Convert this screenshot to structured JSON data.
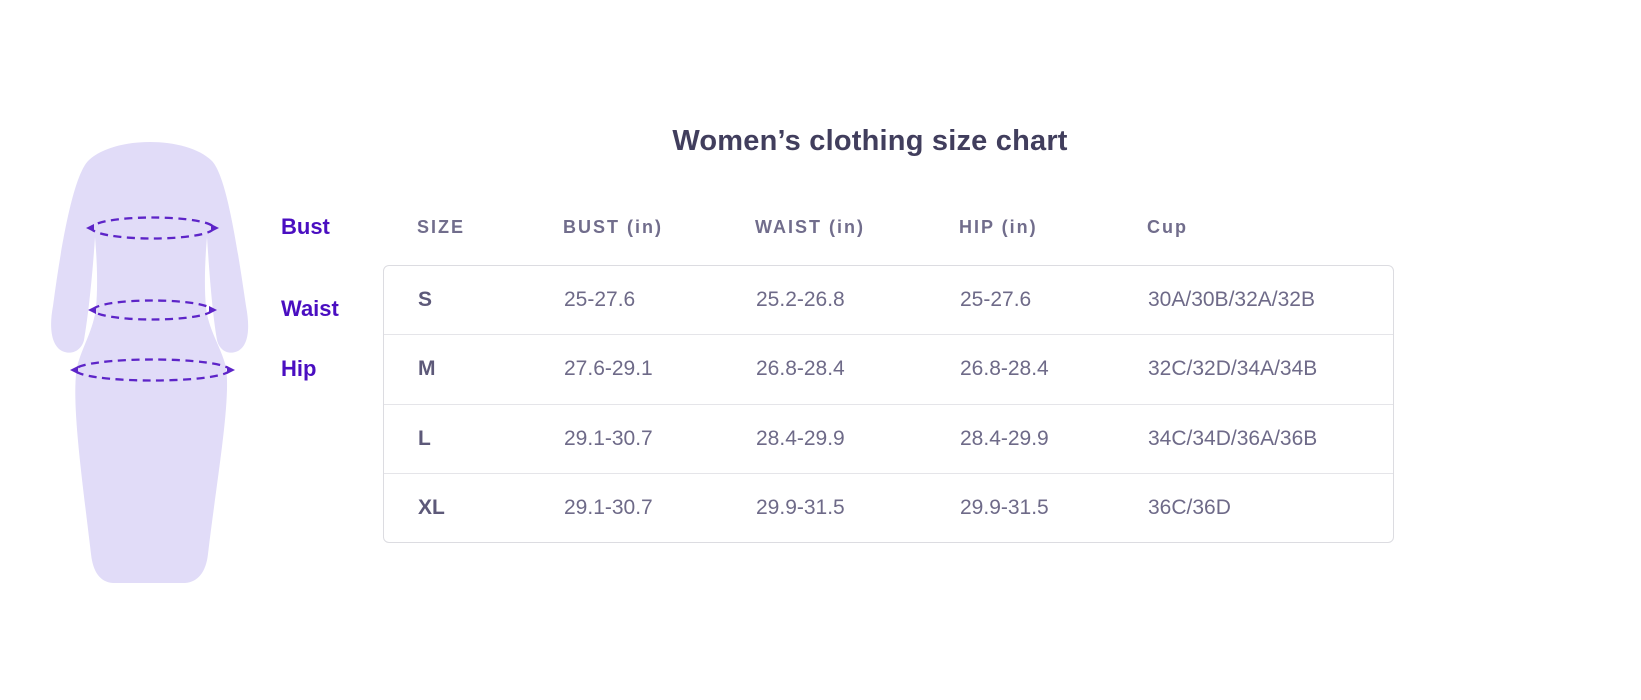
{
  "page": {
    "title": "Women’s clothing size chart",
    "background": "#ffffff",
    "title_color": "#413e5d"
  },
  "figure": {
    "dress_fill": "#e1dcf8",
    "line_color": "#5d24c8",
    "label_color": "#4a0ec1",
    "labels": {
      "bust": "Bust",
      "waist": "Waist",
      "hip": "Hip"
    }
  },
  "table": {
    "headers": [
      "SIZE",
      "BUST (in)",
      "WAIST (in)",
      "HIP (in)",
      "Cup"
    ],
    "rows": [
      [
        "S",
        "25-27.6",
        "25.2-26.8",
        "25-27.6",
        "30A/30B/32A/32B"
      ],
      [
        "M",
        "27.6-29.1",
        "26.8-28.4",
        "26.8-28.4",
        "32C/32D/34A/34B"
      ],
      [
        "L",
        "29.1-30.7",
        "28.4-29.9",
        "28.4-29.9",
        "34C/34D/36A/36B"
      ],
      [
        "XL",
        "29.1-30.7",
        "29.9-31.5",
        "29.9-31.5",
        "36C/36D"
      ]
    ],
    "border_color": "#dcdce1",
    "header_color": "#716d8c",
    "text_color": "#6e6a88"
  },
  "chart_data": {
    "type": "table",
    "title": "Women’s clothing size chart",
    "columns": [
      "SIZE",
      "BUST (in)",
      "WAIST (in)",
      "HIP (in)",
      "Cup"
    ],
    "rows": [
      [
        "S",
        "25-27.6",
        "25.2-26.8",
        "25-27.6",
        "30A/30B/32A/32B"
      ],
      [
        "M",
        "27.6-29.1",
        "26.8-28.4",
        "26.8-28.4",
        "32C/32D/34A/34B"
      ],
      [
        "L",
        "29.1-30.7",
        "28.4-29.9",
        "28.4-29.9",
        "34C/34D/36A/36B"
      ],
      [
        "XL",
        "29.1-30.7",
        "29.9-31.5",
        "29.9-31.5",
        "36C/36D"
      ]
    ],
    "annotations": [
      "Bust",
      "Waist",
      "Hip"
    ],
    "legend_position": "none",
    "grid": "horizontal-row-separators"
  }
}
